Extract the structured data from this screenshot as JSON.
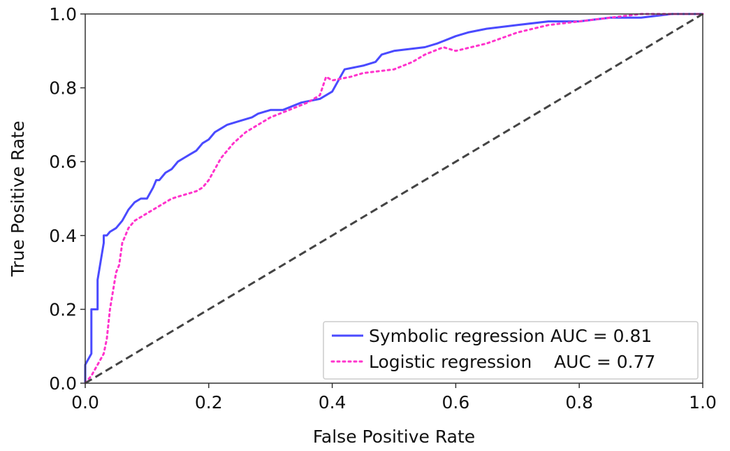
{
  "chart_data": {
    "type": "line",
    "title": "",
    "xlabel": "False Positive Rate",
    "ylabel": "True Positive Rate",
    "xlim": [
      0.0,
      1.0
    ],
    "ylim": [
      0.0,
      1.0
    ],
    "xticks": [
      "0.0",
      "0.2",
      "0.4",
      "0.6",
      "0.8",
      "1.0"
    ],
    "yticks": [
      "0.0",
      "0.2",
      "0.4",
      "0.6",
      "0.8",
      "1.0"
    ],
    "grid": false,
    "legend_position": "bottom-right",
    "series": [
      {
        "name": "Symbolic regression AUC = 0.81",
        "color": "#4a4aff",
        "style": "solid",
        "x": [
          0.0,
          0.0,
          0.01,
          0.01,
          0.015,
          0.02,
          0.02,
          0.025,
          0.03,
          0.03,
          0.035,
          0.04,
          0.05,
          0.06,
          0.07,
          0.08,
          0.09,
          0.1,
          0.11,
          0.115,
          0.12,
          0.13,
          0.14,
          0.15,
          0.16,
          0.17,
          0.18,
          0.19,
          0.2,
          0.21,
          0.22,
          0.23,
          0.25,
          0.27,
          0.28,
          0.3,
          0.32,
          0.35,
          0.38,
          0.4,
          0.41,
          0.42,
          0.45,
          0.47,
          0.48,
          0.5,
          0.55,
          0.57,
          0.6,
          0.62,
          0.65,
          0.7,
          0.75,
          0.8,
          0.85,
          0.9,
          0.95,
          1.0
        ],
        "y": [
          0.0,
          0.05,
          0.08,
          0.2,
          0.2,
          0.2,
          0.28,
          0.33,
          0.38,
          0.4,
          0.4,
          0.41,
          0.42,
          0.44,
          0.47,
          0.49,
          0.5,
          0.5,
          0.53,
          0.55,
          0.55,
          0.57,
          0.58,
          0.6,
          0.61,
          0.62,
          0.63,
          0.65,
          0.66,
          0.68,
          0.69,
          0.7,
          0.71,
          0.72,
          0.73,
          0.74,
          0.74,
          0.76,
          0.77,
          0.79,
          0.82,
          0.85,
          0.86,
          0.87,
          0.89,
          0.9,
          0.91,
          0.92,
          0.94,
          0.95,
          0.96,
          0.97,
          0.98,
          0.98,
          0.99,
          0.99,
          1.0,
          1.0
        ]
      },
      {
        "name": "Logistic regression    AUC = 0.77",
        "color": "#ff33cc",
        "style": "dotted",
        "x": [
          0.0,
          0.01,
          0.02,
          0.03,
          0.035,
          0.04,
          0.045,
          0.05,
          0.055,
          0.06,
          0.065,
          0.07,
          0.08,
          0.09,
          0.1,
          0.12,
          0.14,
          0.16,
          0.18,
          0.19,
          0.2,
          0.21,
          0.22,
          0.23,
          0.24,
          0.26,
          0.28,
          0.3,
          0.33,
          0.36,
          0.38,
          0.39,
          0.4,
          0.43,
          0.45,
          0.5,
          0.53,
          0.55,
          0.58,
          0.6,
          0.65,
          0.7,
          0.75,
          0.8,
          0.85,
          0.9,
          0.95,
          1.0
        ],
        "y": [
          0.0,
          0.02,
          0.05,
          0.08,
          0.12,
          0.2,
          0.25,
          0.3,
          0.32,
          0.38,
          0.4,
          0.42,
          0.44,
          0.45,
          0.46,
          0.48,
          0.5,
          0.51,
          0.52,
          0.53,
          0.55,
          0.58,
          0.61,
          0.63,
          0.65,
          0.68,
          0.7,
          0.72,
          0.74,
          0.76,
          0.78,
          0.83,
          0.82,
          0.83,
          0.84,
          0.85,
          0.87,
          0.89,
          0.91,
          0.9,
          0.92,
          0.95,
          0.97,
          0.98,
          0.99,
          1.0,
          1.0,
          1.0
        ]
      },
      {
        "name": "",
        "color": "#444444",
        "style": "dashed",
        "x": [
          0.0,
          1.0
        ],
        "y": [
          0.0,
          1.0
        ]
      }
    ]
  }
}
